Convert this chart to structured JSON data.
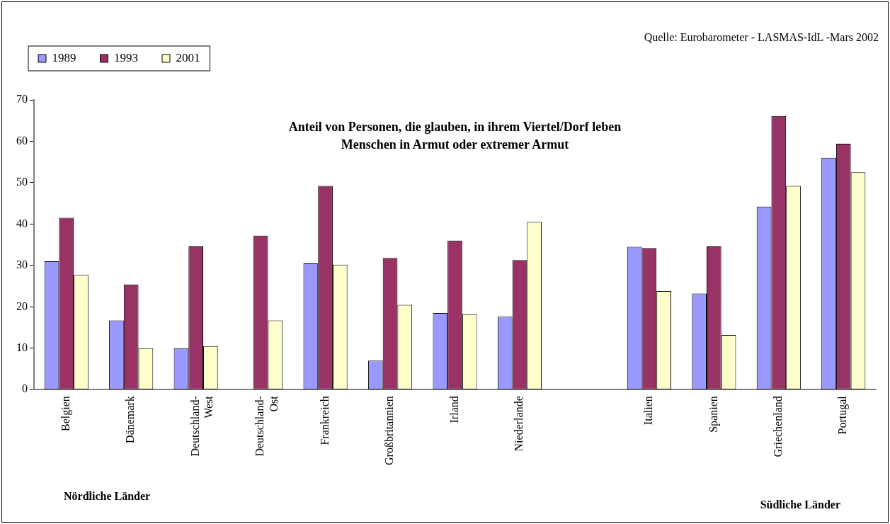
{
  "chart_data": {
    "type": "bar",
    "title": "Anteil von Personen, die glauben, in ihrem Viertel/Dorf leben\nMenschen in Armut oder extremer Armut",
    "categories": [
      "Belgien",
      "Dänemark",
      "Deutschland-\nWest",
      "Deutschland-\nOst",
      "Frankreich",
      "Großbritannien",
      "Irland",
      "Niederlande",
      null,
      "Italien",
      "Spanien",
      "Griechenland",
      "Portugal"
    ],
    "series": [
      {
        "name": "1989",
        "color": "#9999ff",
        "values": [
          31,
          16.7,
          10,
          null,
          30.5,
          7,
          18.5,
          17.6,
          null,
          34.5,
          23.2,
          44.2,
          56
        ]
      },
      {
        "name": "1993",
        "color": "#993366",
        "values": [
          41.5,
          25.4,
          34.6,
          37.2,
          49.2,
          31.8,
          36,
          31.3,
          null,
          34.2,
          34.6,
          66.1,
          59.4
        ]
      },
      {
        "name": "2001",
        "color": "#ffffcc",
        "values": [
          27.7,
          10,
          10.5,
          16.7,
          30.2,
          20.5,
          18.2,
          40.5,
          null,
          23.8,
          13.2,
          49.2,
          52.5
        ]
      }
    ],
    "ylim": [
      0,
      70
    ],
    "yticks": [
      0,
      10,
      20,
      30,
      40,
      50,
      60,
      70
    ],
    "grid": false,
    "legend": "top left",
    "annotations": [
      "Quelle: Eurobarometer - LASMAS-IdL -Mars 2002",
      "Nördliche Länder",
      "Südliche Länder"
    ]
  }
}
